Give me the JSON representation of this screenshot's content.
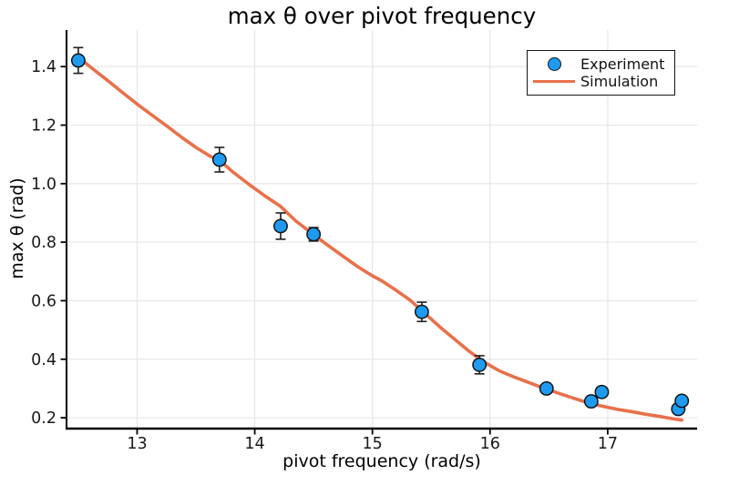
{
  "chart_data": {
    "type": "scatter",
    "title": "max θ over pivot frequency",
    "xlabel": "pivot frequency (rad/s)",
    "ylabel": "max θ (rad)",
    "xlim": [
      12.4,
      17.76
    ],
    "ylim": [
      0.163,
      1.525
    ],
    "xticks": [
      13,
      14,
      15,
      16,
      17
    ],
    "yticks": [
      0.2,
      0.4,
      0.6,
      0.8,
      1.0,
      1.2,
      1.4
    ],
    "grid": true,
    "legend_position": "top-right",
    "colors": {
      "marker_fill": "#1E9BF0",
      "marker_edge": "#101418",
      "sim_line": "#E8714A",
      "grid": "#E8E8E8",
      "axis": "#000000",
      "error_bar": "#1F1F1F"
    },
    "series": [
      {
        "name": "Experiment",
        "type": "scatter",
        "x": [
          12.5,
          13.7,
          14.22,
          14.5,
          15.42,
          15.91,
          16.48,
          16.86,
          16.95,
          17.6,
          17.63
        ],
        "y": [
          1.421,
          1.082,
          0.855,
          0.827,
          0.562,
          0.381,
          0.3,
          0.256,
          0.288,
          0.23,
          0.258
        ],
        "yerr": [
          0.044,
          0.042,
          0.045,
          0.023,
          0.033,
          0.031,
          0.012,
          0.012,
          0.012,
          0.012,
          0.012
        ]
      },
      {
        "name": "Simulation",
        "type": "line",
        "x": [
          12.5,
          12.62,
          12.75,
          12.88,
          13.0,
          13.12,
          13.25,
          13.38,
          13.5,
          13.62,
          13.7,
          13.82,
          13.95,
          14.08,
          14.22,
          14.35,
          14.5,
          14.62,
          14.75,
          14.88,
          15.0,
          15.08,
          15.2,
          15.32,
          15.45,
          15.58,
          15.7,
          15.82,
          15.95,
          16.08,
          16.2,
          16.32,
          16.45,
          16.58,
          16.7,
          16.82,
          16.95,
          17.08,
          17.2,
          17.32,
          17.45,
          17.55,
          17.63
        ],
        "y": [
          1.432,
          1.393,
          1.352,
          1.31,
          1.272,
          1.236,
          1.198,
          1.158,
          1.124,
          1.094,
          1.08,
          1.038,
          0.998,
          0.96,
          0.922,
          0.872,
          0.826,
          0.79,
          0.752,
          0.715,
          0.685,
          0.668,
          0.636,
          0.602,
          0.555,
          0.508,
          0.468,
          0.428,
          0.39,
          0.36,
          0.34,
          0.322,
          0.302,
          0.284,
          0.268,
          0.253,
          0.24,
          0.229,
          0.221,
          0.212,
          0.204,
          0.197,
          0.192
        ]
      }
    ]
  }
}
